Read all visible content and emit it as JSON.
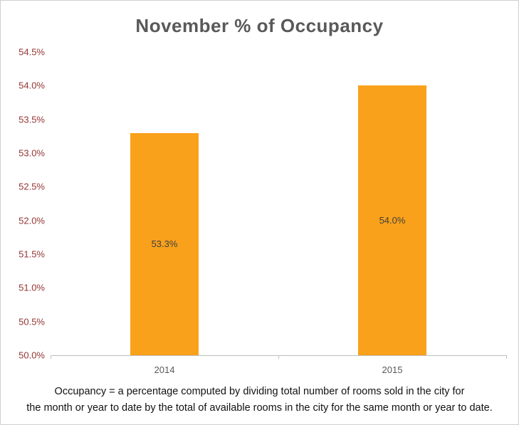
{
  "title": "November % of Occupancy",
  "chart_data": {
    "type": "bar",
    "title": "November % of Occupancy",
    "categories": [
      "2014",
      "2015"
    ],
    "values": [
      53.3,
      54.0
    ],
    "data_labels": [
      "53.3%",
      "54.0%"
    ],
    "xlabel": "",
    "ylabel": "",
    "ylim": [
      50.0,
      54.5
    ],
    "ytick_step": 0.5,
    "ytick_labels": [
      "50.0%",
      "50.5%",
      "51.0%",
      "51.5%",
      "52.0%",
      "52.5%",
      "53.0%",
      "53.5%",
      "54.0%",
      "54.5%"
    ],
    "grid": false,
    "legend": false,
    "bar_color": "#F9A11B"
  },
  "colors": {
    "bar": "#F9A11B",
    "title_text": "#595959",
    "y_axis_text": "#943634",
    "x_axis_text": "#595959",
    "data_label_text": "#404040",
    "axis_line": "#BFBFBF",
    "chart_border": "#D0CECE"
  },
  "footer": {
    "line1": "Occupancy = a percentage computed by dividing total number of rooms sold in the city for",
    "line2": "the month or year to date by the total of available rooms in the city for the same month or year to date."
  }
}
